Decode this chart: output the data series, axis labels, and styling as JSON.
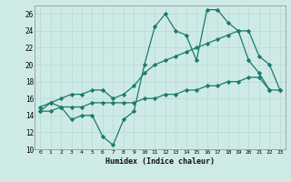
{
  "xlabel": "Humidex (Indice chaleur)",
  "ylabel": "",
  "background_color": "#ceeae6",
  "line_color": "#1a7a6e",
  "grid_color": "#b8d8d4",
  "xlim": [
    -0.5,
    23.5
  ],
  "ylim": [
    10,
    27
  ],
  "yticks": [
    10,
    12,
    14,
    16,
    18,
    20,
    22,
    24,
    26
  ],
  "xticks": [
    0,
    1,
    2,
    3,
    4,
    5,
    6,
    7,
    8,
    9,
    10,
    11,
    12,
    13,
    14,
    15,
    16,
    17,
    18,
    19,
    20,
    21,
    22,
    23
  ],
  "series": [
    {
      "x": [
        0,
        1,
        2,
        3,
        4,
        5,
        6,
        7,
        8,
        9,
        10,
        11,
        12,
        13,
        14,
        15,
        16,
        17,
        18,
        19,
        20,
        21,
        22
      ],
      "y": [
        14.5,
        15.5,
        15.0,
        13.5,
        14.0,
        14.0,
        11.5,
        10.5,
        13.5,
        14.5,
        20.0,
        24.5,
        26.0,
        24.0,
        23.5,
        20.5,
        26.5,
        26.5,
        25.0,
        24.0,
        20.5,
        19.0,
        17.0
      ]
    },
    {
      "x": [
        0,
        1,
        2,
        3,
        4,
        5,
        6,
        7,
        8,
        9,
        10,
        11,
        12,
        13,
        14,
        15,
        16,
        17,
        18,
        19,
        20,
        21,
        22,
        23
      ],
      "y": [
        15.0,
        15.5,
        16.0,
        16.5,
        16.5,
        17.0,
        17.0,
        16.0,
        16.5,
        17.5,
        19.0,
        20.0,
        20.5,
        21.0,
        21.5,
        22.0,
        22.5,
        23.0,
        23.5,
        24.0,
        24.0,
        21.0,
        20.0,
        17.0
      ]
    },
    {
      "x": [
        0,
        1,
        2,
        3,
        4,
        5,
        6,
        7,
        8,
        9,
        10,
        11,
        12,
        13,
        14,
        15,
        16,
        17,
        18,
        19,
        20,
        21,
        22,
        23
      ],
      "y": [
        14.5,
        14.5,
        15.0,
        15.0,
        15.0,
        15.5,
        15.5,
        15.5,
        15.5,
        15.5,
        16.0,
        16.0,
        16.5,
        16.5,
        17.0,
        17.0,
        17.5,
        17.5,
        18.0,
        18.0,
        18.5,
        18.5,
        17.0,
        17.0
      ]
    }
  ]
}
